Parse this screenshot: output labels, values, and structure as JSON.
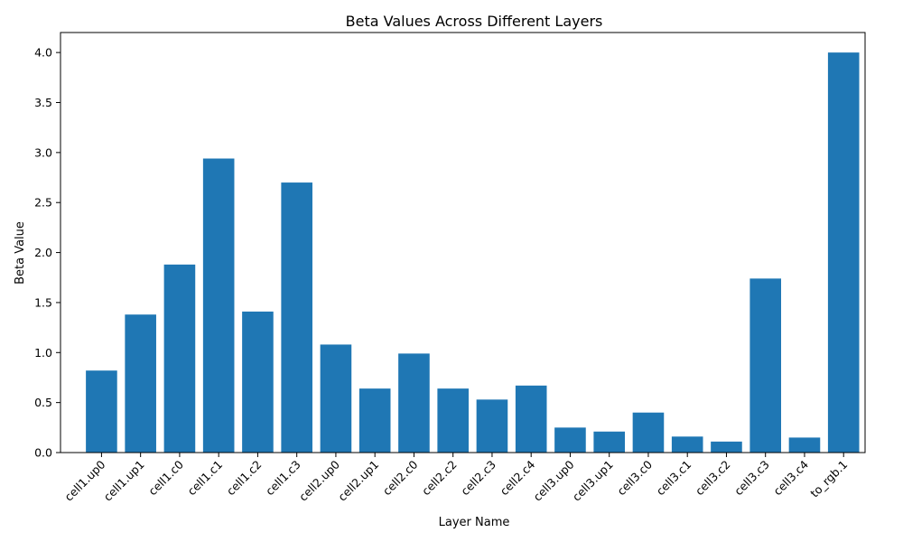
{
  "chart_data": {
    "type": "bar",
    "title": "Beta Values Across Different Layers",
    "xlabel": "Layer Name",
    "ylabel": "Beta Value",
    "categories": [
      "cell1.up0",
      "cell1.up1",
      "cell1.c0",
      "cell1.c1",
      "cell1.c2",
      "cell1.c3",
      "cell2.up0",
      "cell2.up1",
      "cell2.c0",
      "cell2.c2",
      "cell2.c3",
      "cell2.c4",
      "cell3.up0",
      "cell3.up1",
      "cell3.c0",
      "cell3.c1",
      "cell3.c2",
      "cell3.c3",
      "cell3.c4",
      "to_rgb.1"
    ],
    "values": [
      0.82,
      1.38,
      1.88,
      2.94,
      1.41,
      2.7,
      1.08,
      0.64,
      0.99,
      0.64,
      0.53,
      0.67,
      0.25,
      0.21,
      0.4,
      0.16,
      0.11,
      1.74,
      0.15,
      4.0
    ],
    "yticks": [
      "0.0",
      "0.5",
      "1.0",
      "1.5",
      "2.0",
      "2.5",
      "3.0",
      "3.5",
      "4.0"
    ],
    "ylim": [
      0,
      4.2
    ],
    "bar_color": "#1f77b4",
    "grid": false,
    "legend": false
  }
}
